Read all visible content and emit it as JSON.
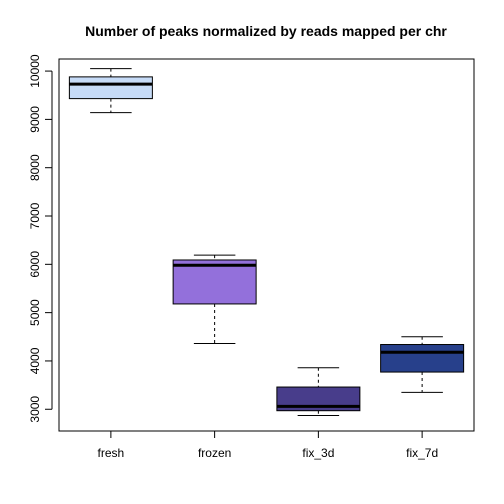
{
  "chart_data": {
    "type": "box",
    "title": "Number of peaks normalized by reads mapped per chr",
    "xlabel": "",
    "ylabel": "",
    "ylim": [
      2550,
      10250
    ],
    "y_ticks": [
      3000,
      4000,
      5000,
      6000,
      7000,
      8000,
      9000,
      10000
    ],
    "categories": [
      "fresh",
      "frozen",
      "fix_3d",
      "fix_7d"
    ],
    "boxes": [
      {
        "name": "fresh",
        "min": 9140,
        "q1": 9430,
        "median": 9730,
        "q3": 9880,
        "max": 10050,
        "color": "#c6dbf7"
      },
      {
        "name": "frozen",
        "min": 4360,
        "q1": 5180,
        "median": 5980,
        "q3": 6090,
        "max": 6190,
        "color": "#9370db"
      },
      {
        "name": "fix_3d",
        "min": 2870,
        "q1": 2970,
        "median": 3060,
        "q3": 3460,
        "max": 3860,
        "color": "#483d8b"
      },
      {
        "name": "fix_7d",
        "min": 3350,
        "q1": 3770,
        "median": 4180,
        "q3": 4340,
        "max": 4500,
        "color": "#27408b"
      }
    ],
    "grid": false,
    "legend": "none"
  }
}
